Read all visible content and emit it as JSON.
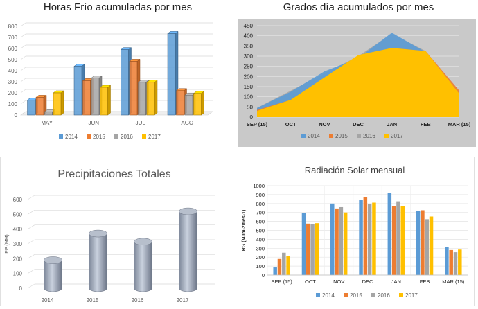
{
  "colors": {
    "c2014": "#5b9bd5",
    "c2015": "#ed7d31",
    "c2016": "#a5a5a5",
    "c2017": "#ffc000"
  },
  "chart_data": [
    {
      "type": "bar",
      "title": "Horas Frío acumuladas por mes",
      "categories": [
        "MAY",
        "JUN",
        "JUL",
        "AGO"
      ],
      "ylim": [
        0,
        800
      ],
      "yticks": [
        "0",
        "100",
        "200",
        "300",
        "400",
        "500",
        "600",
        "700",
        "800"
      ],
      "legend_position": "bottom",
      "series": [
        {
          "name": "2014",
          "values": [
            135,
            440,
            590,
            735
          ]
        },
        {
          "name": "2015",
          "values": [
            160,
            310,
            485,
            220
          ]
        },
        {
          "name": "2016",
          "values": [
            30,
            335,
            295,
            180
          ]
        },
        {
          "name": "2017",
          "values": [
            200,
            250,
            295,
            195
          ]
        }
      ]
    },
    {
      "type": "area",
      "title": "Grados día acumulados por mes",
      "categories": [
        "SEP (15)",
        "OCT",
        "NOV",
        "DEC",
        "JAN",
        "FEB",
        "MAR (15)"
      ],
      "ylim": [
        0,
        450
      ],
      "yticks": [
        "0",
        "50",
        "100",
        "150",
        "200",
        "250",
        "300",
        "350",
        "400",
        "450"
      ],
      "legend_position": "bottom",
      "series": [
        {
          "name": "2014",
          "values": [
            45,
            125,
            225,
            290,
            415,
            320,
            120
          ]
        },
        {
          "name": "2015",
          "values": [
            35,
            85,
            190,
            300,
            340,
            325,
            130
          ]
        },
        {
          "name": "2016",
          "values": [
            45,
            130,
            215,
            300,
            410,
            325,
            110
          ]
        },
        {
          "name": "2017",
          "values": [
            30,
            85,
            195,
            305,
            340,
            325,
            115
          ]
        }
      ]
    },
    {
      "type": "bar",
      "title": "Precipitaciones Totales",
      "ylabel": "PP (MM)",
      "categories": [
        "2014",
        "2015",
        "2016",
        "2017"
      ],
      "values": [
        190,
        370,
        315,
        520
      ],
      "ylim": [
        0,
        600
      ],
      "yticks": [
        "0",
        "100",
        "200",
        "300",
        "400",
        "500",
        "600"
      ]
    },
    {
      "type": "bar",
      "title": "Radiación Solar mensual",
      "ylabel": "RG (MJm-2mes-1)",
      "categories": [
        "SEP (15)",
        "OCT",
        "NOV",
        "DEC",
        "JAN",
        "FEB",
        "MAR (15)"
      ],
      "ylim": [
        0,
        1000
      ],
      "yticks": [
        "0",
        "100",
        "200",
        "300",
        "400",
        "500",
        "600",
        "700",
        "800",
        "900",
        "1000"
      ],
      "legend_position": "bottom",
      "series": [
        {
          "name": "2014",
          "values": [
            85,
            690,
            800,
            840,
            915,
            715,
            315
          ]
        },
        {
          "name": "2015",
          "values": [
            180,
            575,
            745,
            870,
            770,
            725,
            280
          ]
        },
        {
          "name": "2016",
          "values": [
            250,
            570,
            760,
            795,
            825,
            625,
            255
          ]
        },
        {
          "name": "2017",
          "values": [
            210,
            580,
            700,
            810,
            775,
            655,
            285
          ]
        }
      ]
    }
  ]
}
